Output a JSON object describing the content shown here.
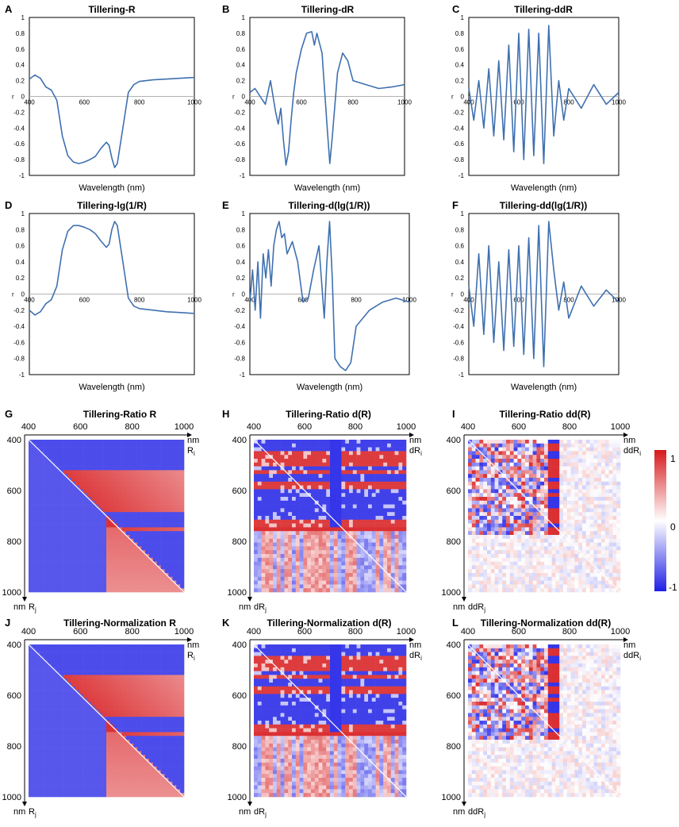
{
  "figure": {
    "colors": {
      "line": "#3f70b0",
      "text": "#000000",
      "zero_line": "#b3b3b3",
      "heat_pos": "#d7191c",
      "heat_mid": "#ffffff",
      "heat_neg": "#1f1fe6"
    },
    "colorbar": {
      "ticks": [
        "1",
        "0",
        "-1"
      ]
    }
  },
  "chart_data": [
    {
      "type": "line",
      "letter": "A",
      "title": "Tillering-R",
      "xlabel": "Wavelength (nm)",
      "ylabel": "r",
      "xlim": [
        400,
        1000
      ],
      "ylim": [
        -1,
        1
      ],
      "xticks": [
        400,
        600,
        800,
        1000
      ],
      "yticks": [
        1,
        0.8,
        0.6,
        0.4,
        0.2,
        0,
        -0.2,
        -0.4,
        -0.6,
        -0.8,
        -1
      ],
      "ytick_labels": [
        "1",
        "0.8",
        "0.6",
        "0.4",
        "0.2",
        "0",
        "-0.2",
        "-0.4",
        "-0.6",
        "-0.8",
        "-1"
      ],
      "x": [
        400,
        420,
        440,
        460,
        480,
        500,
        520,
        540,
        560,
        580,
        600,
        620,
        640,
        660,
        680,
        690,
        700,
        710,
        720,
        740,
        760,
        780,
        800,
        850,
        900,
        950,
        1000
      ],
      "y": [
        0.22,
        0.27,
        0.23,
        0.12,
        0.08,
        -0.05,
        -0.5,
        -0.75,
        -0.83,
        -0.85,
        -0.83,
        -0.8,
        -0.76,
        -0.66,
        -0.58,
        -0.62,
        -0.78,
        -0.9,
        -0.85,
        -0.4,
        0.05,
        0.15,
        0.19,
        0.21,
        0.22,
        0.23,
        0.24
      ]
    },
    {
      "type": "line",
      "letter": "B",
      "title": "Tillering-dR",
      "xlabel": "Wavelength (nm)",
      "ylabel": "r",
      "xlim": [
        400,
        1000
      ],
      "ylim": [
        -1,
        1
      ],
      "xticks": [
        400,
        600,
        800,
        1000
      ],
      "yticks": [
        1,
        0.8,
        0.6,
        0.4,
        0.2,
        0,
        -0.2,
        -0.4,
        -0.6,
        -0.8,
        -1
      ],
      "ytick_labels": [
        "1",
        "0.8",
        "0.6",
        "0.4",
        "0.2",
        "0",
        "-0.2",
        "-0.4",
        "-0.6",
        "-0.8",
        "-1"
      ],
      "x": [
        400,
        420,
        440,
        460,
        480,
        500,
        510,
        520,
        530,
        540,
        550,
        560,
        570,
        580,
        600,
        620,
        640,
        650,
        660,
        680,
        700,
        710,
        720,
        740,
        760,
        780,
        800,
        850,
        900,
        950,
        1000
      ],
      "y": [
        0.05,
        0.1,
        0.0,
        -0.1,
        0.2,
        -0.2,
        -0.35,
        -0.15,
        -0.55,
        -0.87,
        -0.7,
        -0.3,
        0.05,
        0.3,
        0.6,
        0.8,
        0.82,
        0.65,
        0.8,
        0.55,
        -0.4,
        -0.85,
        -0.5,
        0.3,
        0.55,
        0.45,
        0.2,
        0.15,
        0.1,
        0.12,
        0.15
      ]
    },
    {
      "type": "line",
      "letter": "C",
      "title": "Tillering-ddR",
      "xlabel": "Wavelength (nm)",
      "ylabel": "r",
      "xlim": [
        400,
        1000
      ],
      "ylim": [
        -1,
        1
      ],
      "xticks": [
        400,
        600,
        800,
        1000
      ],
      "yticks": [
        1,
        0.8,
        0.6,
        0.4,
        0.2,
        0,
        -0.2,
        -0.4,
        -0.6,
        -0.8,
        -1
      ],
      "ytick_labels": [
        "1",
        "0.8",
        "0.6",
        "0.4",
        "0.2",
        "0",
        "-0.2",
        "-0.4",
        "-0.6",
        "-0.8",
        "-1"
      ],
      "x": [
        400,
        420,
        440,
        460,
        480,
        500,
        520,
        540,
        560,
        580,
        600,
        620,
        640,
        660,
        680,
        700,
        720,
        740,
        760,
        780,
        800,
        850,
        900,
        950,
        1000
      ],
      "y": [
        0.1,
        -0.3,
        0.2,
        -0.4,
        0.35,
        -0.5,
        0.45,
        -0.55,
        0.65,
        -0.7,
        0.8,
        -0.8,
        0.85,
        -0.75,
        0.8,
        -0.85,
        0.9,
        -0.5,
        0.2,
        -0.3,
        0.1,
        -0.15,
        0.15,
        -0.1,
        0.05
      ]
    },
    {
      "type": "line",
      "letter": "D",
      "title": "Tillering-lg(1/R)",
      "xlabel": "Wavelength (nm)",
      "ylabel": "r",
      "xlim": [
        400,
        1000
      ],
      "ylim": [
        -1,
        1
      ],
      "xticks": [
        400,
        600,
        800,
        1000
      ],
      "yticks": [
        1,
        0.8,
        0.6,
        0.4,
        0.2,
        0,
        -0.2,
        -0.4,
        -0.6,
        -0.8,
        -1
      ],
      "ytick_labels": [
        "1",
        "0.8",
        "0.6",
        "0.4",
        "0.2",
        "0",
        "-0.2",
        "-0.4",
        "-0.6",
        "-0.8",
        "-1"
      ],
      "x": [
        400,
        420,
        440,
        460,
        480,
        500,
        520,
        540,
        560,
        580,
        600,
        620,
        640,
        660,
        680,
        690,
        700,
        710,
        720,
        740,
        760,
        780,
        800,
        850,
        900,
        950,
        1000
      ],
      "y": [
        -0.2,
        -0.26,
        -0.22,
        -0.12,
        -0.07,
        0.1,
        0.55,
        0.78,
        0.85,
        0.85,
        0.83,
        0.8,
        0.75,
        0.66,
        0.58,
        0.62,
        0.8,
        0.9,
        0.85,
        0.4,
        -0.05,
        -0.15,
        -0.18,
        -0.2,
        -0.22,
        -0.23,
        -0.24
      ]
    },
    {
      "type": "line",
      "letter": "E",
      "title": "Tillering-d(lg(1/R))",
      "xlabel": "Wavelength (nm)",
      "ylabel": "r",
      "xlim": [
        400,
        1000
      ],
      "ylim": [
        -1,
        1
      ],
      "xticks": [
        400,
        600,
        800,
        1000
      ],
      "yticks": [
        1,
        0.8,
        0.6,
        0.4,
        0.2,
        0,
        -0.2,
        -0.4,
        -0.6,
        -0.8,
        -1
      ],
      "ytick_labels": [
        "1",
        "0.8",
        "0.6",
        "0.4",
        "0.2",
        "0",
        "-0.2",
        "-0.4",
        "-0.6",
        "-0.8",
        "-1"
      ],
      "x": [
        400,
        410,
        420,
        430,
        440,
        450,
        460,
        470,
        480,
        490,
        500,
        510,
        520,
        530,
        540,
        560,
        580,
        600,
        620,
        640,
        660,
        680,
        690,
        700,
        710,
        720,
        740,
        760,
        780,
        800,
        850,
        900,
        950,
        1000
      ],
      "y": [
        -0.1,
        0.3,
        -0.2,
        0.4,
        -0.3,
        0.5,
        0.2,
        0.55,
        0.1,
        0.6,
        0.8,
        0.9,
        0.7,
        0.75,
        0.5,
        0.65,
        0.4,
        -0.1,
        -0.05,
        0.3,
        0.6,
        -0.3,
        0.4,
        0.9,
        0.2,
        -0.8,
        -0.9,
        -0.95,
        -0.85,
        -0.4,
        -0.2,
        -0.1,
        -0.05,
        -0.1
      ]
    },
    {
      "type": "line",
      "letter": "F",
      "title": "Tillering-dd(lg(1/R))",
      "xlabel": "Wavelength (nm)",
      "ylabel": "r",
      "xlim": [
        400,
        1000
      ],
      "ylim": [
        -1,
        1
      ],
      "xticks": [
        400,
        600,
        800,
        1000
      ],
      "yticks": [
        1,
        0.8,
        0.6,
        0.4,
        0.2,
        0,
        -0.2,
        -0.4,
        -0.6,
        -0.8,
        -1
      ],
      "ytick_labels": [
        "1",
        "0.8",
        "0.6",
        "0.4",
        "0.2",
        "0",
        "-0.2",
        "-0.4",
        "-0.6",
        "-0.8",
        "-1"
      ],
      "x": [
        400,
        420,
        440,
        460,
        480,
        500,
        520,
        540,
        560,
        580,
        600,
        620,
        640,
        660,
        680,
        700,
        720,
        740,
        760,
        780,
        800,
        850,
        900,
        950,
        1000
      ],
      "y": [
        0.1,
        -0.4,
        0.5,
        -0.5,
        0.6,
        -0.6,
        0.4,
        -0.7,
        0.55,
        -0.65,
        0.6,
        -0.75,
        0.7,
        -0.8,
        0.85,
        -0.9,
        0.9,
        0.3,
        -0.2,
        0.15,
        -0.3,
        0.1,
        -0.15,
        0.05,
        -0.1
      ]
    },
    {
      "type": "heatmap",
      "letter": "G",
      "title": "Tillering-Ratio R",
      "range": [
        400,
        1000
      ],
      "ticks": [
        "400",
        "600",
        "800",
        "1000"
      ],
      "xlabel_unit": "nm",
      "xlabel_var": "R",
      "xlabel_sub": "i",
      "ylabel_unit": "nm",
      "ylabel_var": "R",
      "ylabel_sub": "j",
      "pattern": "smooth",
      "colormap": [
        -1,
        0,
        1
      ]
    },
    {
      "type": "heatmap",
      "letter": "H",
      "title": "Tillering-Ratio d(R)",
      "range": [
        400,
        1000
      ],
      "ticks": [
        "400",
        "600",
        "800",
        "1000"
      ],
      "xlabel_unit": "nm",
      "xlabel_var": "dR",
      "xlabel_sub": "i",
      "ylabel_unit": "nm",
      "ylabel_var": "dR",
      "ylabel_sub": "j",
      "pattern": "banded",
      "colormap": [
        -1,
        0,
        1
      ]
    },
    {
      "type": "heatmap",
      "letter": "I",
      "title": "Tillering-Ratio dd(R)",
      "range": [
        400,
        1000
      ],
      "ticks": [
        "400",
        "600",
        "800",
        "1000"
      ],
      "xlabel_unit": "nm",
      "xlabel_var": "ddR",
      "xlabel_sub": "i",
      "ylabel_unit": "nm",
      "ylabel_var": "ddR",
      "ylabel_sub": "j",
      "pattern": "sparse",
      "colormap": [
        -1,
        0,
        1
      ]
    },
    {
      "type": "heatmap",
      "letter": "J",
      "title": "Tillering-Normalization R",
      "range": [
        400,
        1000
      ],
      "ticks": [
        "400",
        "600",
        "800",
        "1000"
      ],
      "xlabel_unit": "nm",
      "xlabel_var": "R",
      "xlabel_sub": "i",
      "ylabel_unit": "nm",
      "ylabel_var": "R",
      "ylabel_sub": "j",
      "pattern": "smooth",
      "colormap": [
        -1,
        0,
        1
      ]
    },
    {
      "type": "heatmap",
      "letter": "K",
      "title": "Tillering-Normalization d(R)",
      "range": [
        400,
        1000
      ],
      "ticks": [
        "400",
        "600",
        "800",
        "1000"
      ],
      "xlabel_unit": "nm",
      "xlabel_var": "dR",
      "xlabel_sub": "i",
      "ylabel_unit": "nm",
      "ylabel_var": "dR",
      "ylabel_sub": "j",
      "pattern": "banded",
      "colormap": [
        -1,
        0,
        1
      ]
    },
    {
      "type": "heatmap",
      "letter": "L",
      "title": "Tillering-Normalization dd(R)",
      "range": [
        400,
        1000
      ],
      "ticks": [
        "400",
        "600",
        "800",
        "1000"
      ],
      "xlabel_unit": "nm",
      "xlabel_var": "ddR",
      "xlabel_sub": "i",
      "ylabel_unit": "nm",
      "ylabel_var": "ddR",
      "ylabel_sub": "j",
      "pattern": "sparse",
      "colormap": [
        -1,
        0,
        1
      ]
    }
  ]
}
